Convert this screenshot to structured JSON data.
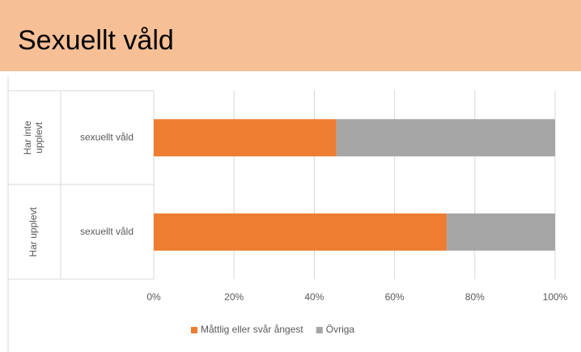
{
  "chart_data": {
    "type": "stacked-barh",
    "title": "Sexuellt våld",
    "groups": [
      [
        "Har inte",
        "upplevt"
      ],
      [
        "Har upplevt"
      ]
    ],
    "categories": [
      "sexuellt våld",
      "sexuellt våld"
    ],
    "series": [
      {
        "name": "Måttlig eller svår ångest",
        "color": "#ed7d31",
        "values": [
          45.5,
          73
        ]
      },
      {
        "name": "Övriga",
        "color": "#a5a5a5",
        "values": [
          54.5,
          27
        ]
      }
    ],
    "xlim": [
      0,
      100
    ],
    "xticks": [
      {
        "value": 0,
        "label": "0%"
      },
      {
        "value": 20,
        "label": "20%"
      },
      {
        "value": 40,
        "label": "40%"
      },
      {
        "value": 60,
        "label": "60%"
      },
      {
        "value": 80,
        "label": "80%"
      },
      {
        "value": 100,
        "label": "100%"
      }
    ],
    "grid": true,
    "legend": "bottom"
  }
}
